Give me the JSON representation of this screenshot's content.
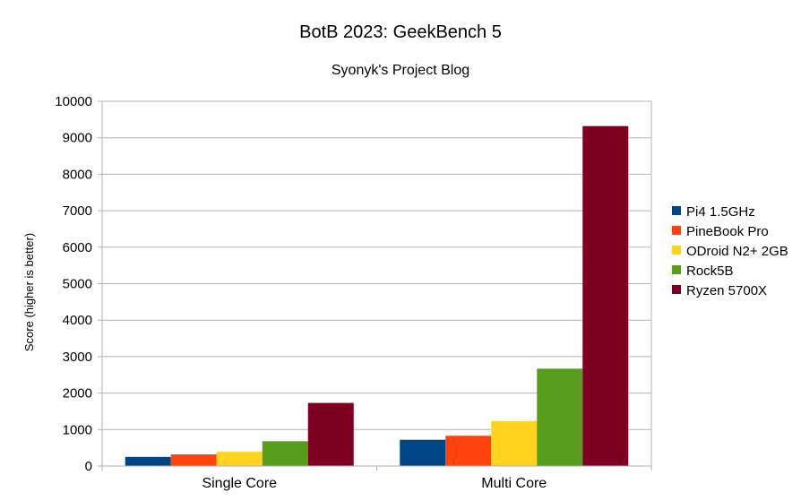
{
  "chart_data": {
    "type": "bar",
    "title": "BotB 2023: GeekBench 5",
    "subtitle": "Syonyk's Project Blog",
    "xlabel": "",
    "ylabel": "Score (higher is better)",
    "ylim": [
      0,
      10000
    ],
    "yticks": [
      0,
      1000,
      2000,
      3000,
      4000,
      5000,
      6000,
      7000,
      8000,
      9000,
      10000
    ],
    "grid": true,
    "legend_position": "right",
    "categories": [
      "Single Core",
      "Multi Core"
    ],
    "series": [
      {
        "name": "Pi4 1.5GHz",
        "color": "#004586",
        "values": [
          250,
          720
        ]
      },
      {
        "name": "PineBook Pro",
        "color": "#ff420e",
        "values": [
          320,
          830
        ]
      },
      {
        "name": "ODroid N2+ 2GB",
        "color": "#ffd320",
        "values": [
          390,
          1230
        ]
      },
      {
        "name": "Rock5B",
        "color": "#579d1c",
        "values": [
          680,
          2670
        ]
      },
      {
        "name": "Ryzen 5700X",
        "color": "#7e0021",
        "values": [
          1730,
          9320
        ]
      }
    ]
  }
}
